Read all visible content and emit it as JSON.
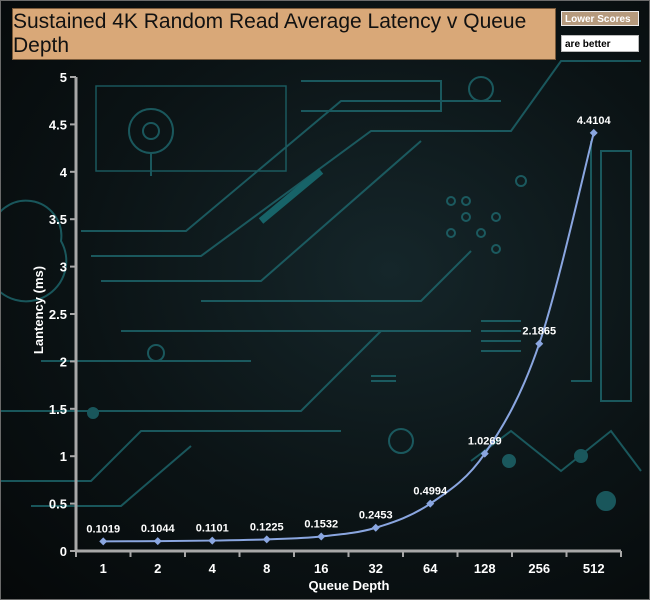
{
  "chart_data": {
    "type": "line",
    "title": "Sustained 4K Random Read Average Latency v Queue Depth",
    "legend_note": {
      "line1": "Lower Scores",
      "line2": "are better"
    },
    "xlabel": "Queue Depth",
    "ylabel": "Lantency (ms)",
    "categories": [
      "1",
      "2",
      "4",
      "8",
      "16",
      "32",
      "64",
      "128",
      "256",
      "512"
    ],
    "x": [
      1,
      2,
      4,
      8,
      16,
      32,
      64,
      128,
      256,
      512
    ],
    "y_ticks": [
      "0",
      "0.5",
      "1",
      "1.5",
      "2",
      "2.5",
      "3",
      "3.5",
      "4",
      "4.5",
      "5"
    ],
    "ylim": [
      0,
      5
    ],
    "grid": false,
    "series": [
      {
        "values": [
          0.1019,
          0.1044,
          0.1101,
          0.1225,
          0.1532,
          0.2453,
          0.4994,
          1.0269,
          2.1865,
          4.4104
        ],
        "labels": [
          "0.1019",
          "0.1044",
          "0.1101",
          "0.1225",
          "0.1532",
          "0.2453",
          "0.4994",
          "1.0269",
          "2.1865",
          "4.4104"
        ],
        "color": "#8aa6e0"
      }
    ],
    "colors": {
      "axis": "#a8a8a8",
      "line": "#8aa6e0",
      "marker": "#8aa6e0",
      "title_bg": "#d9a878",
      "circuit": "#1f6e74"
    }
  }
}
